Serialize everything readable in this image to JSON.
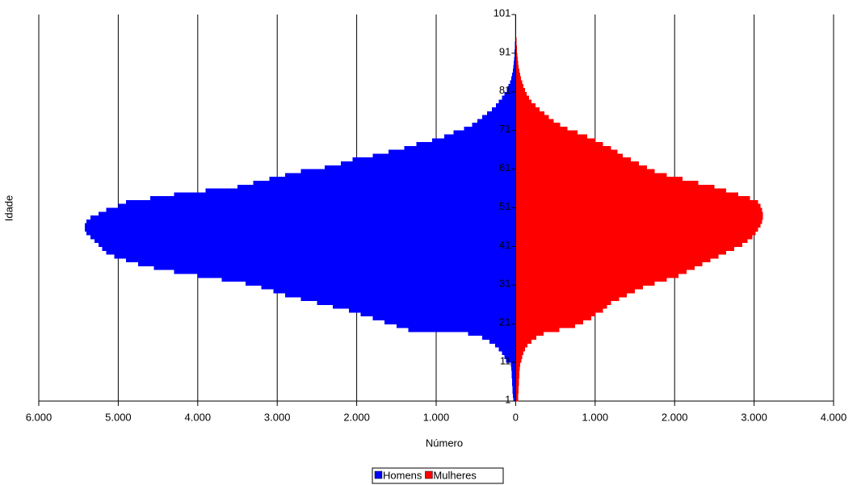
{
  "chart_data": {
    "type": "pyramid",
    "x_label": "Número",
    "y_label": "Idade",
    "categories": [
      "1",
      null,
      null,
      null,
      null,
      null,
      null,
      null,
      null,
      null,
      "11",
      null,
      null,
      null,
      null,
      null,
      null,
      null,
      null,
      null,
      "21",
      null,
      null,
      null,
      null,
      null,
      null,
      null,
      null,
      null,
      "31",
      null,
      null,
      null,
      null,
      null,
      null,
      null,
      null,
      null,
      "41",
      null,
      null,
      null,
      null,
      null,
      null,
      null,
      null,
      null,
      "51",
      null,
      null,
      null,
      null,
      null,
      null,
      null,
      null,
      null,
      "61",
      null,
      null,
      null,
      null,
      null,
      null,
      null,
      null,
      null,
      "71",
      null,
      null,
      null,
      null,
      null,
      null,
      null,
      null,
      null,
      "81",
      null,
      null,
      null,
      null,
      null,
      null,
      null,
      null,
      null,
      "91",
      null,
      null,
      null,
      null,
      null,
      null,
      null,
      null,
      null,
      "101"
    ],
    "series": [
      {
        "name": "Homens",
        "color": "#0000ff",
        "values": [
          -30,
          -35,
          -40,
          -40,
          -45,
          -45,
          -50,
          -50,
          -55,
          -60,
          -120,
          -140,
          -170,
          -210,
          -260,
          -330,
          -420,
          -600,
          -1350,
          -1500,
          -1650,
          -1800,
          -1950,
          -2100,
          -2300,
          -2500,
          -2700,
          -2900,
          -3050,
          -3200,
          -3400,
          -3700,
          -4000,
          -4300,
          -4550,
          -4750,
          -4900,
          -5050,
          -5150,
          -5200,
          -5250,
          -5300,
          -5350,
          -5400,
          -5420,
          -5420,
          -5400,
          -5350,
          -5250,
          -5150,
          -5000,
          -4900,
          -4600,
          -4300,
          -3900,
          -3500,
          -3300,
          -3100,
          -2900,
          -2700,
          -2400,
          -2200,
          -2050,
          -1800,
          -1600,
          -1400,
          -1250,
          -1050,
          -900,
          -780,
          -650,
          -550,
          -480,
          -420,
          -360,
          -300,
          -250,
          -210,
          -170,
          -140,
          -110,
          -90,
          -70,
          -55,
          -45,
          -35,
          -28,
          -22,
          -18,
          -15,
          -12,
          -10,
          -8,
          -6,
          -5,
          -4,
          -3,
          -2,
          -2,
          -1,
          -1
        ]
      },
      {
        "name": "Mulheres",
        "color": "#ff0000",
        "values": [
          30,
          30,
          35,
          35,
          40,
          40,
          45,
          45,
          50,
          55,
          70,
          80,
          100,
          120,
          150,
          200,
          260,
          350,
          550,
          750,
          850,
          950,
          1000,
          1100,
          1150,
          1200,
          1300,
          1400,
          1500,
          1600,
          1750,
          1900,
          2050,
          2150,
          2250,
          2350,
          2450,
          2550,
          2650,
          2750,
          2850,
          2920,
          2980,
          3020,
          3050,
          3080,
          3100,
          3110,
          3110,
          3100,
          3080,
          3050,
          2950,
          2800,
          2650,
          2500,
          2300,
          2100,
          1900,
          1750,
          1650,
          1550,
          1450,
          1350,
          1280,
          1200,
          1100,
          1000,
          900,
          780,
          650,
          560,
          480,
          420,
          360,
          300,
          250,
          200,
          170,
          140,
          120,
          100,
          80,
          65,
          55,
          45,
          38,
          32,
          27,
          22,
          18,
          15,
          12,
          10,
          8,
          6,
          5,
          4,
          3,
          2,
          1
        ]
      }
    ],
    "xlim": [
      -6000,
      4000
    ],
    "xticks": [
      {
        "value": -6000,
        "label": "6.000"
      },
      {
        "value": -5000,
        "label": "5.000"
      },
      {
        "value": -4000,
        "label": "4.000"
      },
      {
        "value": -3000,
        "label": "3.000"
      },
      {
        "value": -2000,
        "label": "2.000"
      },
      {
        "value": -1000,
        "label": "1.000"
      },
      0,
      {
        "value": 1000,
        "label": "1.000"
      },
      {
        "value": 2000,
        "label": "2.000"
      },
      {
        "value": 3000,
        "label": "3.000"
      },
      {
        "value": 4000,
        "label": "4.000"
      }
    ],
    "grid": true,
    "legend": "bottom"
  }
}
